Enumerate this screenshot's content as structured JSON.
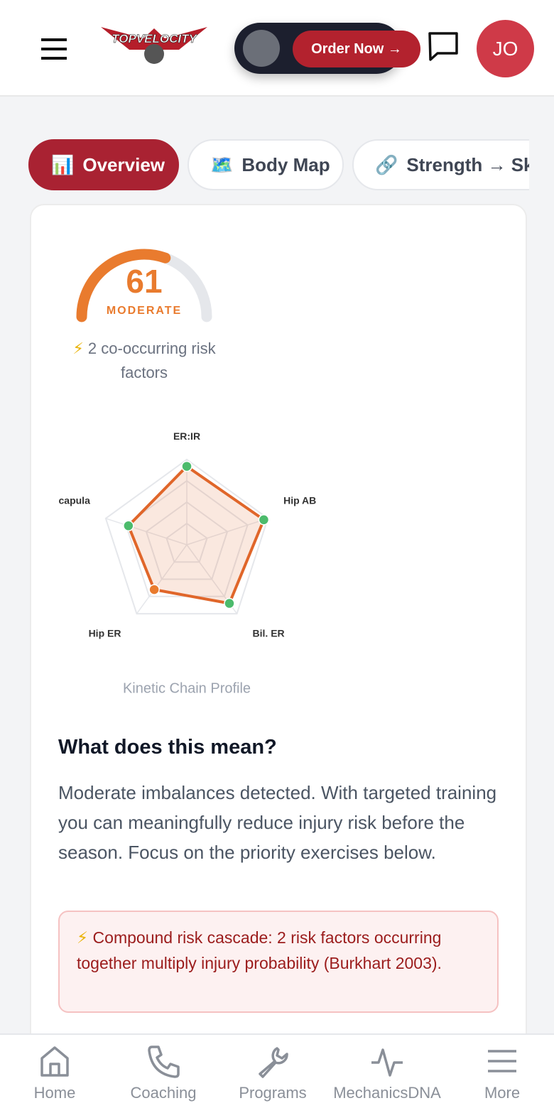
{
  "header": {
    "logo": "TOPVELOCITY",
    "order_button": "Order Now →",
    "avatar": "JO"
  },
  "tabs": [
    {
      "icon": "📊",
      "label": "Overview"
    },
    {
      "icon": "🗺️",
      "label": "Body Map"
    },
    {
      "icon": "🔗",
      "label": "Strength → Ski"
    }
  ],
  "risk_summary": {
    "icon": "⚡",
    "text": "2 co-occurring risk factors"
  },
  "chart_data": [
    {
      "type": "gauge",
      "value": 61,
      "label": "MODERATE",
      "range": [
        0,
        100
      ],
      "color": "#e97b2e",
      "track_color": "#e5e7eb"
    },
    {
      "type": "radar",
      "title": "Kinetic Chain Profile",
      "categories": [
        "ER:IR",
        "Hip AB",
        "Bil. ER",
        "Hip ER",
        "Scapula"
      ],
      "series": [
        {
          "values": [
            92,
            95,
            85,
            65,
            72
          ],
          "color": "#e0662a",
          "point_colors": [
            "#4cbb6c",
            "#4cbb6c",
            "#4cbb6c",
            "#e97b2e",
            "#4cbb6c"
          ]
        }
      ],
      "rlim": [
        0,
        100
      ],
      "rticks": [
        25,
        50,
        75,
        100
      ]
    }
  ],
  "explanation": {
    "heading": "What does this mean?",
    "text": "Moderate imbalances detected. With targeted training you can meaningfully reduce injury risk before the season. Focus on the priority exercises below."
  },
  "alert": {
    "icon": "⚡",
    "text": "Compound risk cascade: 2 risk factors occurring together multiply injury probability (Burkhart 2003)."
  },
  "nav": [
    "Home",
    "Coaching",
    "Programs",
    "MechanicsDNA",
    "More"
  ]
}
